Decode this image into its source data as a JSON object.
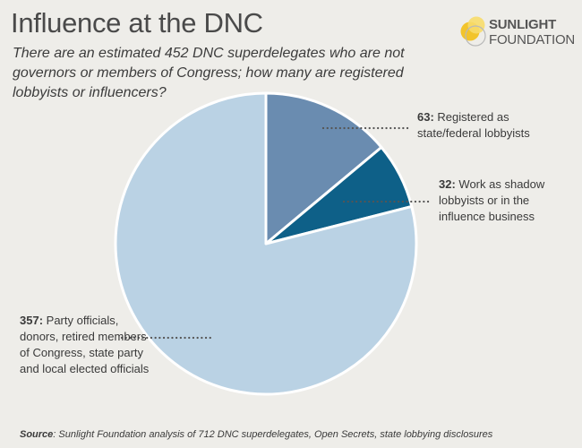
{
  "header": {
    "title": "Influence at the DNC",
    "subtitle": "There are an estimated 452 DNC superdelegates who are not governors or members of Congress; how many are registered lobbyists or influencers?"
  },
  "logo": {
    "line1": "SUNLIGHT",
    "line2": "FOUNDATION",
    "icon": "sunlight-circles-icon",
    "colors": [
      "#f2c42c",
      "#f7dc6a",
      "#b9b9b9"
    ]
  },
  "chart_data": {
    "type": "pie",
    "title": "Influence at the DNC",
    "total": 452,
    "slices": [
      {
        "value": 63,
        "label": "Registered as state/federal lobbyists",
        "color": "#6a8cb0"
      },
      {
        "value": 32,
        "label": "Work as shadow lobbyists or in the influence business",
        "color": "#0e6088"
      },
      {
        "value": 357,
        "label": "Party officials, donors, retired members of Congress, state party and local elected officials",
        "color": "#bad2e4"
      }
    ]
  },
  "annotations": [
    {
      "value": "63:",
      "text": "Registered as state/federal lobbyists"
    },
    {
      "value": "32:",
      "text": "Work as shadow lobbyists or in the influence business"
    },
    {
      "value": "357:",
      "text": "Party officials, donors, retired members of Congress, state party and local elected officials"
    }
  ],
  "source": {
    "label": "Source",
    "text": ": Sunlight Foundation analysis of 712 DNC superdelegates, Open Secrets, state lobbying disclosures"
  }
}
